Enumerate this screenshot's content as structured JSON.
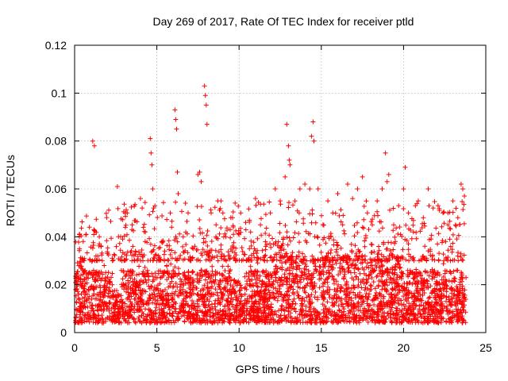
{
  "chart_data": {
    "type": "scatter",
    "title": "Day 269 of 2017, Rate Of TEC Index for receiver ptld",
    "xlabel": "GPS time / hours",
    "ylabel": "ROTI / TECUs",
    "xlim": [
      0,
      25
    ],
    "ylim": [
      0,
      0.12
    ],
    "x_ticks": [
      0,
      5,
      10,
      15,
      20,
      25
    ],
    "x_tick_labels": [
      "0",
      "5",
      "10",
      "15",
      "20",
      "25"
    ],
    "y_ticks": [
      0,
      0.02,
      0.04,
      0.06,
      0.08,
      0.1,
      0.12
    ],
    "y_tick_labels": [
      "0",
      "0.02",
      "0.04",
      "0.06",
      "0.08",
      "0.1",
      "0.12"
    ],
    "grid": true,
    "marker": "+",
    "marker_color": "#ff0000",
    "series": [
      {
        "name": "ROTI",
        "x": [
          0.1,
          0.3,
          0.5,
          0.7,
          0.9,
          1.1,
          1.2,
          1.3,
          1.5,
          1.8,
          2.0,
          2.3,
          2.6,
          2.8,
          3.2,
          3.5,
          3.7,
          4.0,
          4.3,
          4.6,
          4.65,
          4.7,
          4.75,
          4.8,
          5.0,
          5.3,
          5.6,
          5.9,
          6.1,
          6.15,
          6.2,
          6.25,
          6.3,
          6.6,
          6.9,
          7.2,
          7.5,
          7.6,
          7.7,
          7.9,
          7.95,
          8.0,
          8.05,
          8.3,
          8.6,
          8.9,
          9.2,
          9.5,
          9.8,
          10.1,
          10.4,
          10.7,
          11.0,
          11.3,
          11.6,
          11.9,
          12.2,
          12.5,
          12.8,
          12.9,
          13.0,
          13.05,
          13.1,
          13.4,
          13.7,
          14.0,
          14.3,
          14.4,
          14.5,
          14.55,
          14.8,
          15.1,
          15.4,
          15.7,
          16.0,
          16.3,
          16.6,
          16.9,
          17.2,
          17.5,
          17.8,
          18.1,
          18.4,
          18.7,
          18.9,
          19.0,
          19.1,
          19.4,
          19.7,
          20.0,
          20.1,
          20.3,
          20.6,
          20.9,
          21.2,
          21.5,
          21.8,
          22.1,
          22.4,
          22.7,
          23.0,
          23.3,
          23.5,
          23.6,
          23.7
        ],
        "y": [
          0.018,
          0.035,
          0.026,
          0.041,
          0.044,
          0.08,
          0.078,
          0.032,
          0.04,
          0.028,
          0.033,
          0.03,
          0.061,
          0.04,
          0.05,
          0.045,
          0.034,
          0.056,
          0.042,
          0.081,
          0.075,
          0.07,
          0.06,
          0.052,
          0.03,
          0.038,
          0.028,
          0.044,
          0.093,
          0.089,
          0.085,
          0.067,
          0.058,
          0.04,
          0.05,
          0.035,
          0.066,
          0.067,
          0.063,
          0.103,
          0.099,
          0.095,
          0.087,
          0.05,
          0.045,
          0.055,
          0.04,
          0.048,
          0.03,
          0.05,
          0.046,
          0.042,
          0.056,
          0.045,
          0.038,
          0.05,
          0.06,
          0.055,
          0.065,
          0.087,
          0.078,
          0.072,
          0.07,
          0.055,
          0.06,
          0.062,
          0.06,
          0.082,
          0.088,
          0.08,
          0.06,
          0.045,
          0.055,
          0.05,
          0.058,
          0.045,
          0.062,
          0.056,
          0.06,
          0.065,
          0.05,
          0.045,
          0.055,
          0.06,
          0.075,
          0.063,
          0.066,
          0.045,
          0.053,
          0.06,
          0.069,
          0.05,
          0.042,
          0.055,
          0.048,
          0.06,
          0.052,
          0.053,
          0.05,
          0.045,
          0.055,
          0.048,
          0.062,
          0.06,
          0.057
        ]
      }
    ]
  }
}
